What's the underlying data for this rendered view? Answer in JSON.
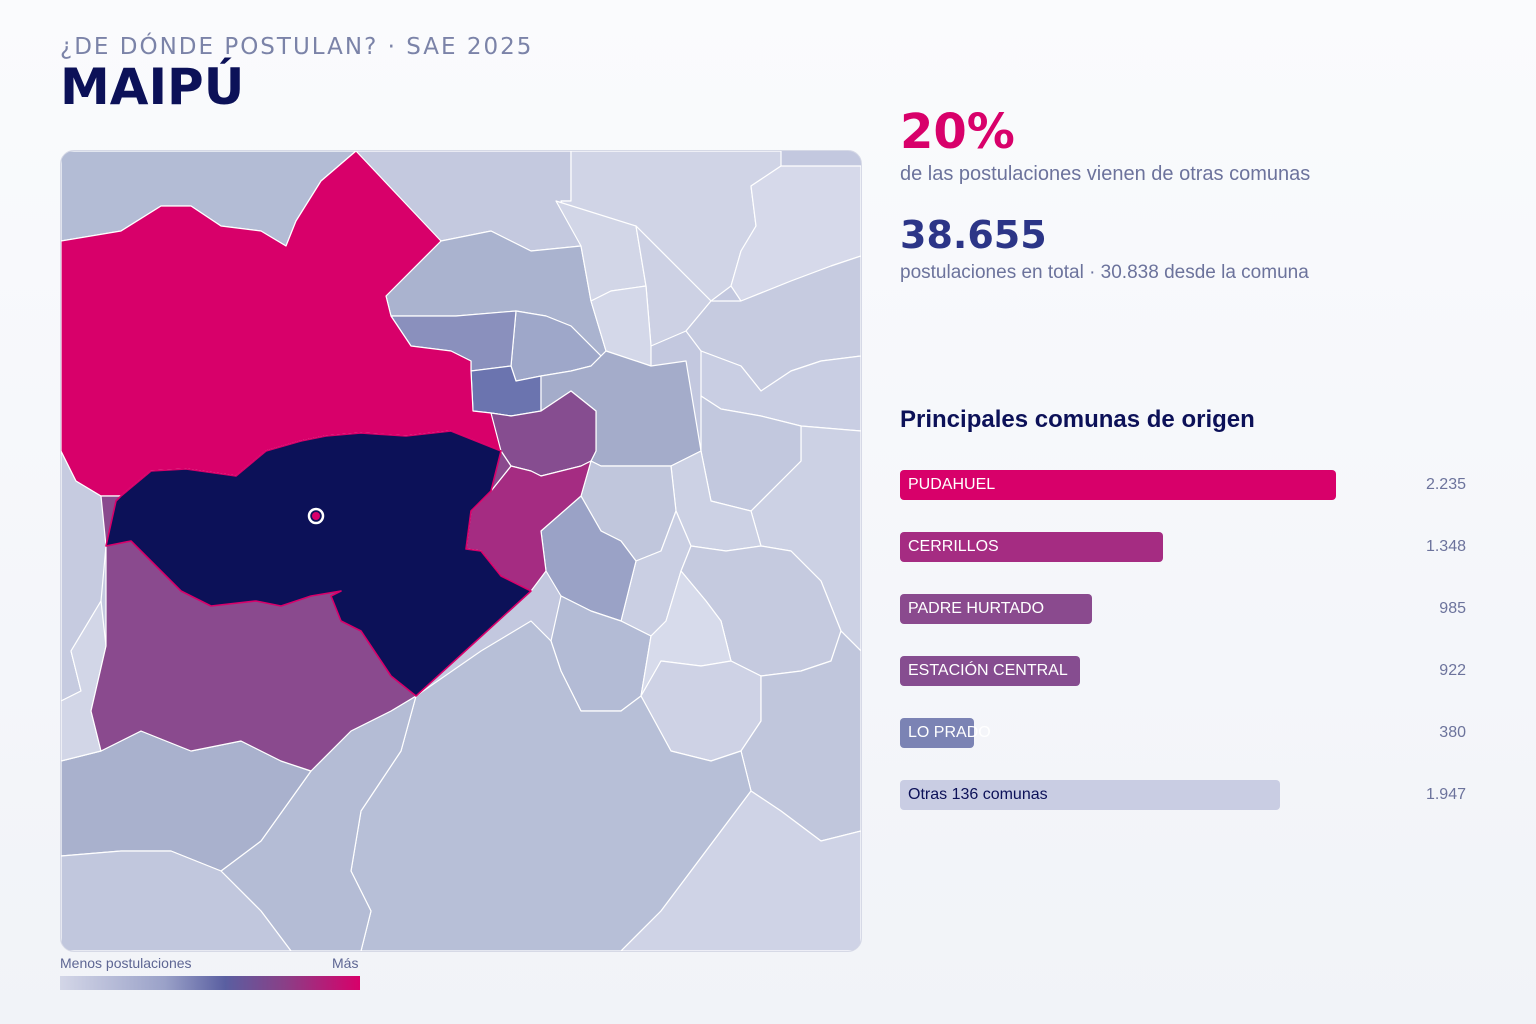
{
  "header": {
    "supertitle": "¿DE DÓNDE POSTULAN? · SAE 2025",
    "title": "MAIPÚ"
  },
  "kpis": {
    "share_pct": "20%",
    "share_desc": "de las postulaciones vienen de otras comunas",
    "total": "38.655",
    "total_desc": "postulaciones en total · 30.838 desde la comuna"
  },
  "ranking": {
    "title": "Principales comunas de origen",
    "max_value": 2235,
    "items": [
      {
        "label": "PUDAHUEL",
        "value": 2235,
        "value_text": "2.235",
        "color": "#d8006a"
      },
      {
        "label": "CERRILLOS",
        "value": 1348,
        "value_text": "1.348",
        "color": "#a52c82"
      },
      {
        "label": "PADRE HURTADO",
        "value": 985,
        "value_text": "985",
        "color": "#8a4a8e"
      },
      {
        "label": "ESTACIÓN CENTRAL",
        "value": 922,
        "value_text": "922",
        "color": "#864d90"
      },
      {
        "label": "LO PRADO",
        "value": 380,
        "value_text": "380",
        "color": "#7b83b4"
      },
      {
        "label": "Otras 136 comunas",
        "value": 1947,
        "value_text": "1.947",
        "color": "#c9cde3",
        "dark_label": true
      }
    ]
  },
  "legend": {
    "min_label": "Menos postulaciones",
    "max_label": "Más"
  },
  "map": {
    "selected_color": "#0c1158",
    "marker_color": "#d8006a"
  }
}
